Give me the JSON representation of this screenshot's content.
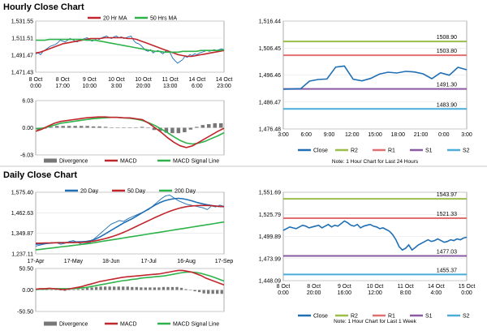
{
  "sections": {
    "hourly_title": "Hourly Close Chart",
    "daily_title": "Daily Close Chart"
  },
  "colors": {
    "close": "#1f6fb5",
    "ma_short": "#c0262c",
    "ma_long": "#2db34a",
    "r2": "#9bbd4a",
    "r1": "#e07070",
    "s1": "#8a5aa3",
    "s2": "#4aaed8",
    "macd": "#c0262c",
    "signal": "#2db34a",
    "divergence": "#777777"
  },
  "chart_data": [
    {
      "id": "hourly-price",
      "type": "line",
      "legend": [
        "20 Hr MA",
        "50 Hrs MA"
      ],
      "x_ticks": [
        "8 Oct\n0:00",
        "8 Oct\n17:00",
        "9 Oct\n10:00",
        "10 Oct\n3:00",
        "10 Oct\n20:00",
        "11 Oct\n13:00",
        "14 Oct\n6:00",
        "14 Oct\n23:00"
      ],
      "y_ticks": [
        1531.55,
        1511.51,
        1491.47,
        1471.43
      ],
      "ylim": [
        1471.43,
        1531.55
      ],
      "series": [
        {
          "name": "Close",
          "values": [
            1493,
            1494,
            1492,
            1496,
            1498,
            1500,
            1502,
            1503,
            1504,
            1506,
            1509,
            1508,
            1507,
            1509,
            1511,
            1510,
            1508,
            1507,
            1509,
            1510,
            1511,
            1512,
            1510,
            1508,
            1509,
            1511,
            1510,
            1512,
            1513,
            1514,
            1512,
            1511,
            1513,
            1514,
            1512,
            1513,
            1511,
            1512,
            1513,
            1514,
            1509,
            1506,
            1505,
            1503,
            1500,
            1497,
            1496,
            1498,
            1494,
            1496,
            1497,
            1495,
            1493,
            1496,
            1497,
            1494,
            1488,
            1485,
            1482,
            1484,
            1486,
            1490,
            1489,
            1492,
            1491,
            1493,
            1492,
            1494,
            1495,
            1496,
            1497,
            1496,
            1497,
            1498,
            1497,
            1498,
            1499,
            1498
          ]
        },
        {
          "name": "20 Hr MA",
          "values": [
            1494,
            1495,
            1497,
            1499,
            1501,
            1503,
            1505,
            1506,
            1507,
            1508,
            1509,
            1510,
            1511,
            1511,
            1511,
            1512,
            1512,
            1512,
            1512,
            1512,
            1511,
            1511,
            1510,
            1508,
            1506,
            1504,
            1502,
            1500,
            1498,
            1496,
            1494,
            1492,
            1491,
            1490,
            1490,
            1491,
            1492,
            1493,
            1494,
            1495,
            1496,
            1497
          ]
        },
        {
          "name": "50 Hrs MA",
          "values": [
            1509,
            1509,
            1509,
            1510,
            1510,
            1510,
            1510,
            1510,
            1510,
            1510,
            1510,
            1509,
            1509,
            1509,
            1508,
            1507,
            1506,
            1505,
            1504,
            1503,
            1502,
            1501,
            1500,
            1499,
            1498,
            1497,
            1496,
            1496,
            1495,
            1495,
            1495,
            1495,
            1496,
            1496,
            1496,
            1496,
            1497,
            1497,
            1497,
            1497,
            1497,
            1498
          ]
        }
      ]
    },
    {
      "id": "hourly-macd",
      "type": "line",
      "legend": [
        "Divergence",
        "MACD",
        "MACD Signal Line"
      ],
      "y_ticks": [
        6.03,
        0.0,
        -6.03
      ],
      "ylim": [
        -6.03,
        6.03
      ],
      "series": [
        {
          "name": "MACD",
          "values": [
            -0.8,
            -0.3,
            0.4,
            1.0,
            1.4,
            1.6,
            1.8,
            2.0,
            2.2,
            2.3,
            2.4,
            2.4,
            2.3,
            2.3,
            2.2,
            2.2,
            2.0,
            1.8,
            1.0,
            0.0,
            -1.0,
            -2.2,
            -3.2,
            -4.0,
            -4.4,
            -4.0,
            -3.2,
            -2.4,
            -1.6,
            -0.8,
            -0.1
          ]
        },
        {
          "name": "MACD Signal Line",
          "values": [
            -0.2,
            -0.1,
            0.2,
            0.6,
            1.0,
            1.2,
            1.4,
            1.6,
            1.8,
            2.0,
            2.1,
            2.2,
            2.3,
            2.3,
            2.2,
            2.1,
            1.9,
            1.6,
            1.1,
            0.5,
            -0.3,
            -1.1,
            -2.0,
            -2.8,
            -3.4,
            -3.6,
            -3.4,
            -3.0,
            -2.4,
            -1.8,
            -1.1
          ]
        },
        {
          "name": "Divergence",
          "values": [
            -0.6,
            -0.2,
            0.2,
            0.4,
            0.4,
            0.4,
            0.4,
            0.4,
            0.4,
            0.3,
            0.3,
            0.2,
            0.0,
            0.0,
            0.0,
            0.1,
            0.1,
            0.2,
            -0.1,
            -0.5,
            -0.7,
            -1.1,
            -1.2,
            -1.2,
            -1.0,
            -0.4,
            0.2,
            0.6,
            0.8,
            1.0,
            1.0
          ]
        }
      ]
    },
    {
      "id": "hourly-close",
      "type": "line",
      "x_ticks": [
        "3:00",
        "6:00",
        "9:00",
        "12:00",
        "15:00",
        "18:00",
        "21:00",
        "0:00",
        "3:00"
      ],
      "y_ticks": [
        1516.44,
        1506.45,
        1496.46,
        1486.47,
        1476.48
      ],
      "ylim": [
        1476.48,
        1516.44
      ],
      "levels": [
        {
          "name": "R2",
          "value": 1508.9,
          "label": "1508.90"
        },
        {
          "name": "R1",
          "value": 1503.8,
          "label": "1503.80"
        },
        {
          "name": "S1",
          "value": 1491.3,
          "label": "1491.30"
        },
        {
          "name": "S2",
          "value": 1483.9,
          "label": "1483.90"
        }
      ],
      "series": [
        {
          "name": "Close",
          "values": [
            1491.2,
            1491.3,
            1491.4,
            1494.2,
            1494.8,
            1495.0,
            1499.4,
            1499.8,
            1494.9,
            1494.3,
            1495.2,
            1496.8,
            1497.5,
            1497.2,
            1497.8,
            1497.6,
            1496.9,
            1495.1,
            1497.3,
            1496.4,
            1499.3,
            1498.4
          ]
        }
      ],
      "legend": [
        "Close",
        "R2",
        "R1",
        "S1",
        "S2"
      ],
      "note": "Note: 1 Hour Chart for Last 24 Hours"
    },
    {
      "id": "daily-price",
      "type": "line",
      "legend": [
        "20 Day",
        "50 Day",
        "200 Day"
      ],
      "x_ticks": [
        "17-Apr",
        "17-May",
        "18-Jun",
        "17-Jul",
        "16-Aug",
        "17-Sep"
      ],
      "y_ticks": [
        1575.4,
        1462.63,
        1349.87,
        1237.11
      ],
      "ylim": [
        1237.11,
        1575.4
      ],
      "series": [
        {
          "name": "Close",
          "values": [
            1280,
            1285,
            1290,
            1295,
            1300,
            1298,
            1290,
            1295,
            1305,
            1310,
            1300,
            1290,
            1295,
            1300,
            1320,
            1340,
            1360,
            1380,
            1400,
            1410,
            1420,
            1415,
            1430,
            1440,
            1450,
            1460,
            1470,
            1480,
            1500,
            1520,
            1540,
            1555,
            1560,
            1545,
            1530,
            1520,
            1510,
            1505,
            1500,
            1495,
            1490,
            1480,
            1500,
            1495,
            1505,
            1498
          ]
        },
        {
          "name": "20 Day",
          "values": [
            1290,
            1292,
            1294,
            1296,
            1298,
            1299,
            1299,
            1300,
            1302,
            1303,
            1304,
            1305,
            1310,
            1318,
            1330,
            1345,
            1360,
            1375,
            1390,
            1405,
            1418,
            1430,
            1445,
            1460,
            1475,
            1490,
            1505,
            1518,
            1528,
            1535,
            1540,
            1542,
            1540,
            1535,
            1528,
            1520,
            1514,
            1508,
            1504,
            1500,
            1497,
            1496
          ]
        },
        {
          "name": "50 Day",
          "values": [
            1296,
            1296,
            1297,
            1297,
            1298,
            1298,
            1298,
            1299,
            1299,
            1300,
            1300,
            1302,
            1305,
            1309,
            1314,
            1320,
            1327,
            1335,
            1344,
            1354,
            1365,
            1377,
            1389,
            1401,
            1413,
            1425,
            1437,
            1448,
            1459,
            1469,
            1478,
            1486,
            1492,
            1497,
            1500,
            1502,
            1503,
            1503,
            1502,
            1500,
            1498,
            1497
          ]
        },
        {
          "name": "200 Day",
          "values": [
            1260,
            1262,
            1265,
            1268,
            1271,
            1274,
            1277,
            1280,
            1283,
            1286,
            1289,
            1292,
            1296,
            1300,
            1304,
            1308,
            1312,
            1316,
            1320,
            1324,
            1328,
            1332,
            1336,
            1340,
            1344,
            1348,
            1352,
            1356,
            1360,
            1364,
            1368,
            1372,
            1376,
            1380,
            1384,
            1388,
            1392,
            1396,
            1400,
            1404,
            1408,
            1412
          ]
        }
      ]
    },
    {
      "id": "daily-macd",
      "type": "line",
      "legend": [
        "Divergence",
        "MACD",
        "MACD Signal Line"
      ],
      "y_ticks": [
        50.5,
        0.0,
        -50.5
      ],
      "ylim": [
        -50.5,
        50.5
      ],
      "series": [
        {
          "name": "MACD",
          "values": [
            2,
            3,
            3,
            4,
            3,
            2,
            1,
            2,
            4,
            6,
            8,
            11,
            14,
            17,
            20,
            22,
            24,
            26,
            28,
            30,
            31,
            32,
            33,
            34,
            35,
            36,
            37,
            38,
            40,
            42,
            44,
            46,
            46,
            44,
            42,
            38,
            34,
            28,
            24,
            20,
            16,
            12
          ]
        },
        {
          "name": "MACD Signal Line",
          "values": [
            1,
            2,
            2,
            3,
            3,
            3,
            3,
            3,
            3,
            4,
            5,
            6,
            8,
            10,
            12,
            14,
            16,
            18,
            20,
            22,
            23,
            25,
            26,
            28,
            29,
            30,
            31,
            32,
            33,
            35,
            37,
            39,
            41,
            42,
            42,
            41,
            39,
            36,
            33,
            29,
            25,
            21
          ]
        },
        {
          "name": "Divergence",
          "values": [
            1,
            1,
            1,
            1,
            0,
            -1,
            -2,
            -1,
            1,
            2,
            3,
            5,
            6,
            7,
            8,
            8,
            8,
            8,
            8,
            8,
            8,
            7,
            7,
            6,
            6,
            6,
            6,
            6,
            7,
            7,
            7,
            7,
            5,
            2,
            0,
            -3,
            -5,
            -8,
            -9,
            -9,
            -9,
            -9
          ]
        }
      ]
    },
    {
      "id": "daily-close",
      "type": "line",
      "x_ticks": [
        "8 Oct\n0:00",
        "8 Oct\n20:00",
        "9 Oct\n16:00",
        "10 Oct\n12:00",
        "11 Oct\n8:00",
        "14 Oct\n4:00",
        "15 Oct\n0:00"
      ],
      "y_ticks": [
        1551.69,
        1525.79,
        1499.89,
        1473.99,
        1448.09
      ],
      "ylim": [
        1448.09,
        1551.69
      ],
      "levels": [
        {
          "name": "R2",
          "value": 1543.97,
          "label": "1543.97"
        },
        {
          "name": "R1",
          "value": 1521.33,
          "label": "1521.33"
        },
        {
          "name": "S1",
          "value": 1477.03,
          "label": "1477.03"
        },
        {
          "name": "S2",
          "value": 1455.37,
          "label": "1455.37"
        }
      ],
      "series": [
        {
          "name": "Close",
          "values": [
            1507,
            1509,
            1511,
            1510,
            1509,
            1511,
            1513,
            1512,
            1510,
            1511,
            1512,
            1513,
            1510,
            1512,
            1514,
            1511,
            1513,
            1512,
            1515,
            1518,
            1516,
            1513,
            1512,
            1514,
            1510,
            1512,
            1513,
            1514,
            1512,
            1511,
            1509,
            1510,
            1508,
            1506,
            1502,
            1496,
            1488,
            1484,
            1486,
            1490,
            1484,
            1487,
            1490,
            1492,
            1494,
            1496,
            1494,
            1495,
            1497,
            1495,
            1493,
            1494,
            1496,
            1495,
            1497,
            1496,
            1498,
            1499
          ]
        }
      ],
      "legend": [
        "Close",
        "R2",
        "R1",
        "S1",
        "S2"
      ],
      "note": "Note: 1 Hour Chart for Last 1 Week"
    }
  ]
}
